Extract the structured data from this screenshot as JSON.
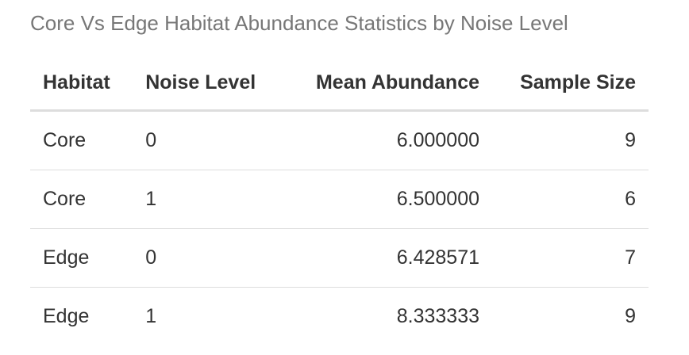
{
  "caption": "Core Vs Edge Habitat Abundance Statistics by Noise Level",
  "table": {
    "headers": [
      "Habitat",
      "Noise Level",
      "Mean Abundance",
      "Sample Size"
    ],
    "rows": [
      [
        "Core",
        "0",
        "6.000000",
        "9"
      ],
      [
        "Core",
        "1",
        "6.500000",
        "6"
      ],
      [
        "Edge",
        "0",
        "6.428571",
        "7"
      ],
      [
        "Edge",
        "1",
        "8.333333",
        "9"
      ]
    ]
  }
}
